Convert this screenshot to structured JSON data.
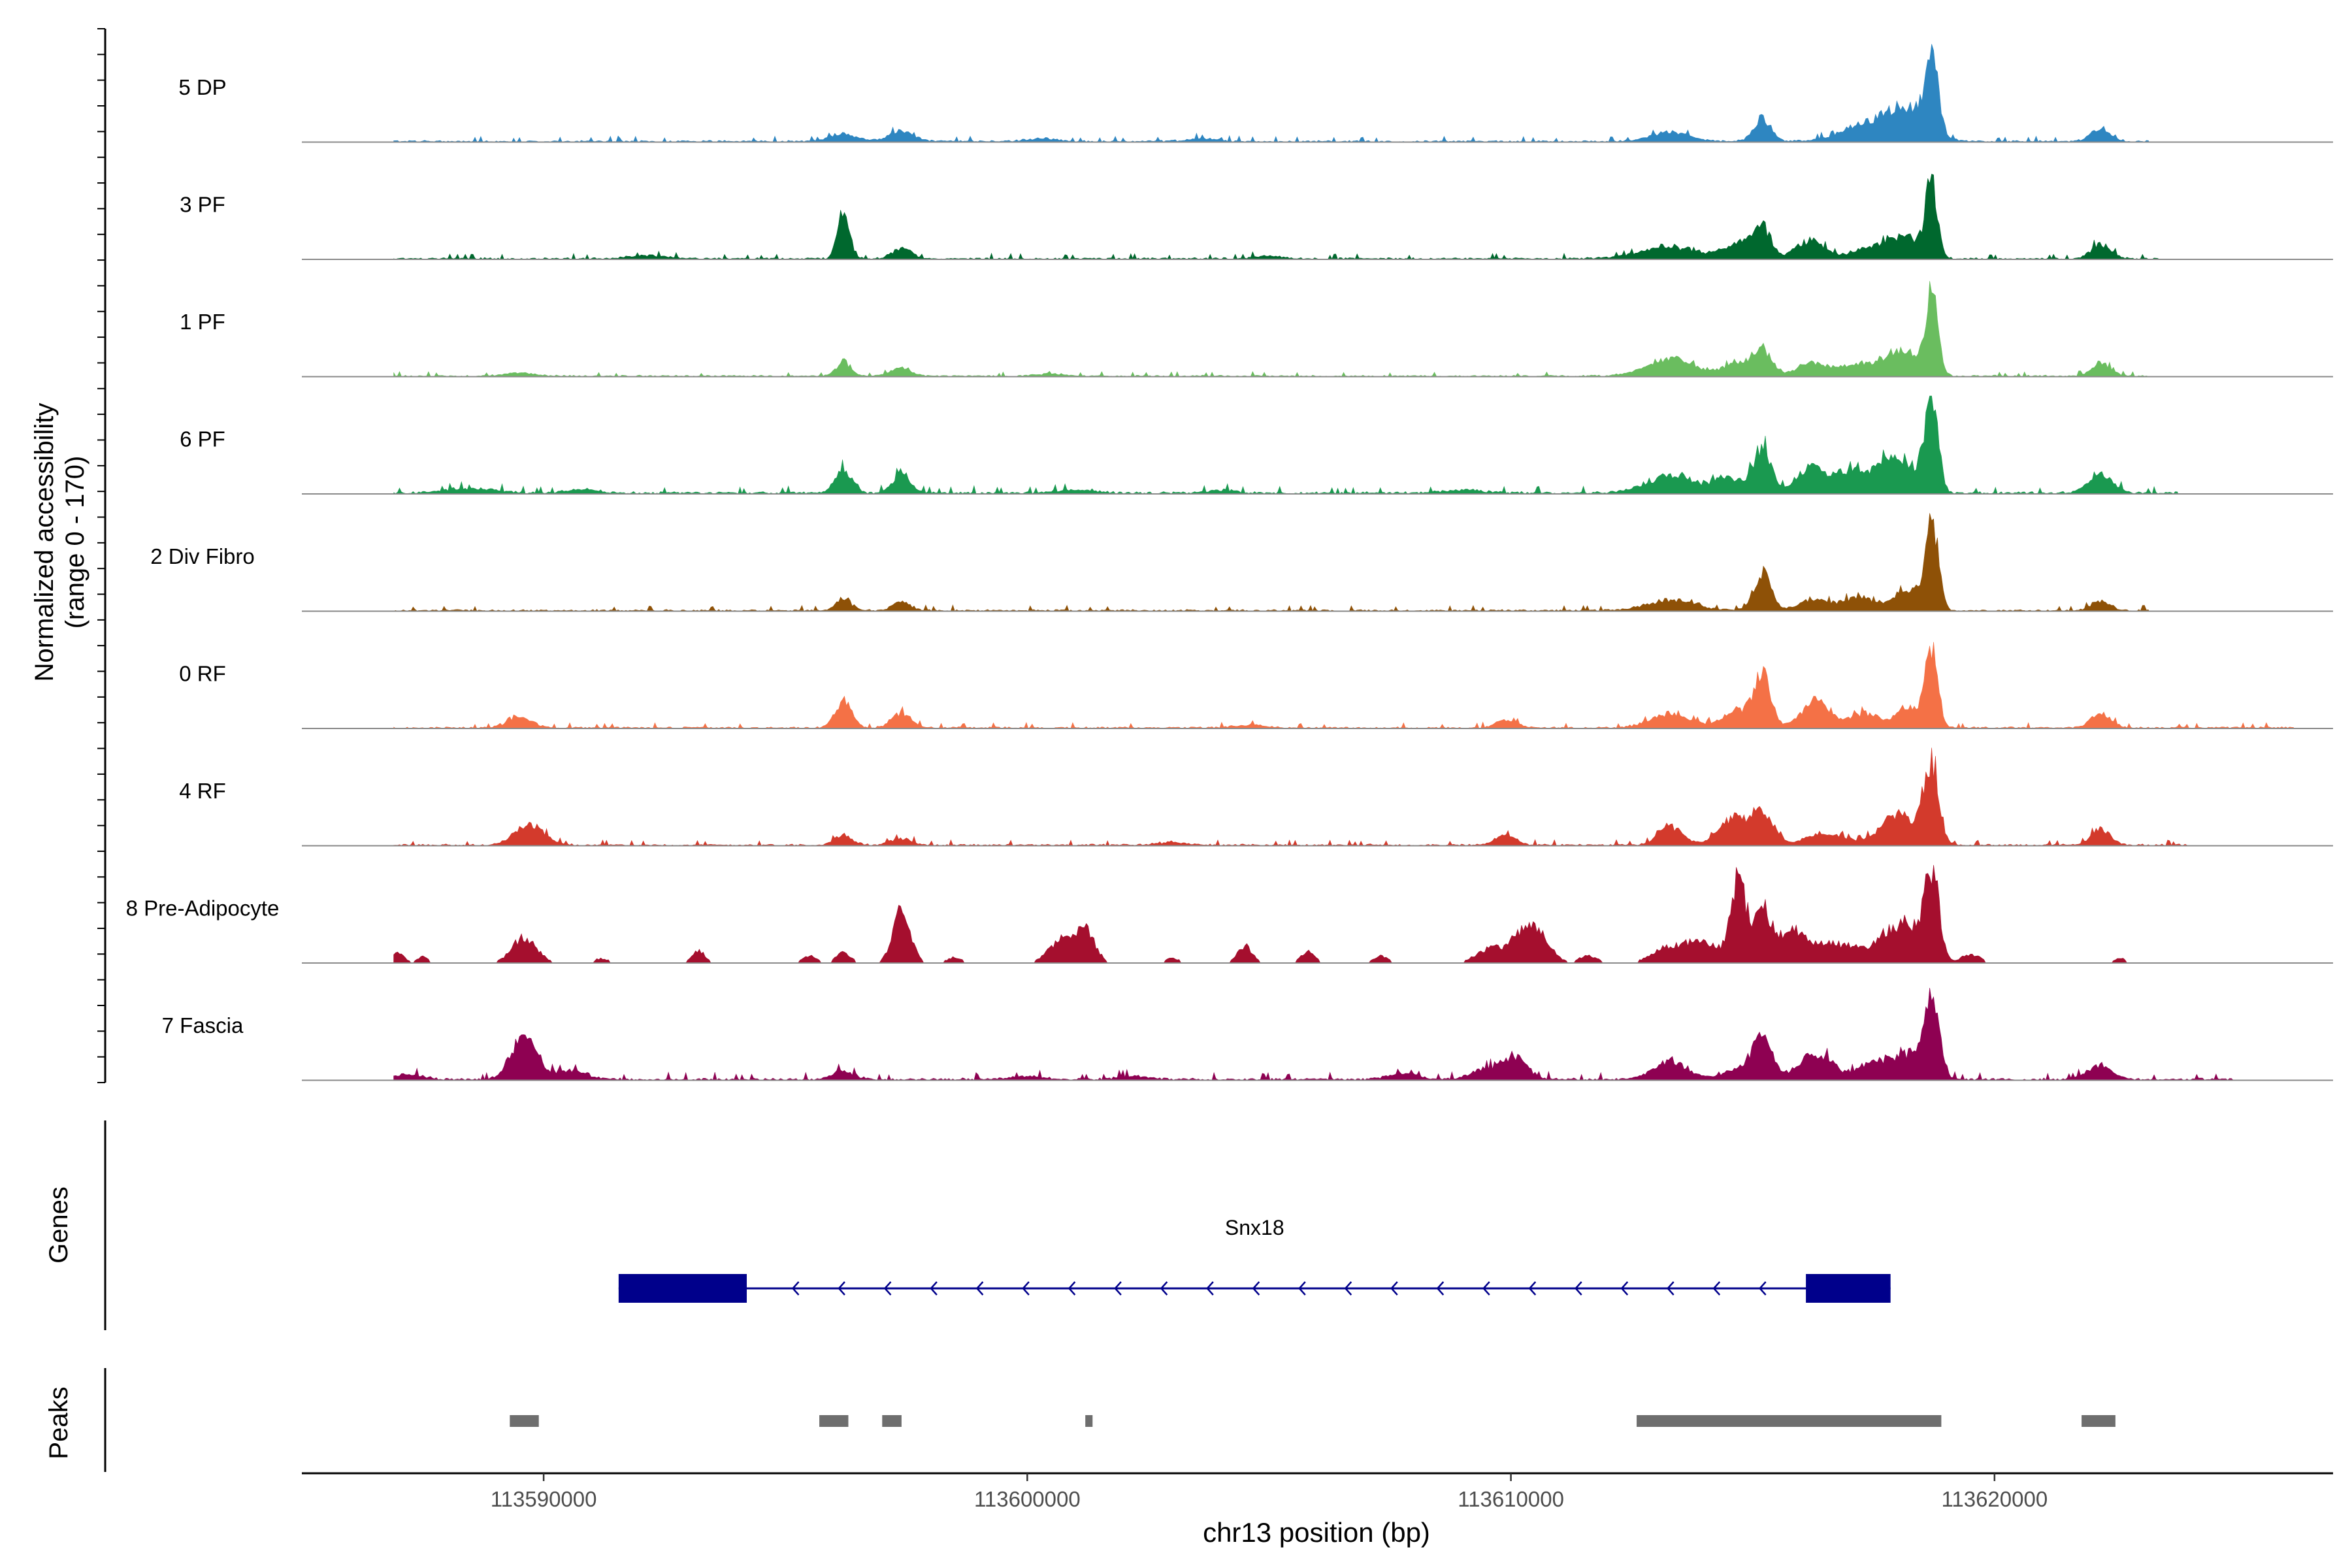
{
  "chart_data": {
    "type": "area",
    "title": "",
    "ylabel_line1": "Normalized accessibility",
    "ylabel_line2": "(range 0 - 170)",
    "xlabel": "chr13 position (bp)",
    "xlim": [
      113585000,
      113627000
    ],
    "ylim": [
      0,
      170
    ],
    "x_ticks": [
      113590000,
      113600000,
      113610000,
      113620000
    ],
    "x_tick_labels": [
      "113590000",
      "113600000",
      "113610000",
      "113620000"
    ],
    "track_labels": {
      "genes": "Genes",
      "peaks": "Peaks"
    },
    "tracks": [
      {
        "name": "5 DP",
        "color": "#2E86C1",
        "noise": 3.0,
        "range": [
          113586900,
          113623200
        ],
        "peaks": [
          [
            113596200,
            12,
            300
          ],
          [
            113597400,
            18,
            250
          ],
          [
            113600300,
            5,
            300
          ],
          [
            113603600,
            5,
            300
          ],
          [
            113613300,
            15,
            400
          ],
          [
            113615200,
            40,
            180
          ],
          [
            113617000,
            8,
            400
          ],
          [
            113617700,
            28,
            600
          ],
          [
            113618700,
            150,
            130
          ],
          [
            113618200,
            40,
            400
          ],
          [
            113622200,
            22,
            200
          ]
        ]
      },
      {
        "name": "3 PF",
        "color": "#00682E",
        "noise": 3.0,
        "range": [
          113586900,
          113623400
        ],
        "peaks": [
          [
            113592200,
            5,
            400
          ],
          [
            113596200,
            80,
            120
          ],
          [
            113597400,
            18,
            200
          ],
          [
            113605000,
            5,
            300
          ],
          [
            113613300,
            20,
            600
          ],
          [
            113614700,
            25,
            300
          ],
          [
            113615200,
            50,
            180
          ],
          [
            113616200,
            30,
            300
          ],
          [
            113617500,
            20,
            400
          ],
          [
            113618200,
            35,
            300
          ],
          [
            113618700,
            130,
            120
          ],
          [
            113622200,
            25,
            200
          ]
        ]
      },
      {
        "name": "1 PF",
        "color": "#6ABD5F",
        "noise": 2.5,
        "range": [
          113586900,
          113623200
        ],
        "peaks": [
          [
            113589500,
            6,
            300
          ],
          [
            113596200,
            25,
            150
          ],
          [
            113597400,
            15,
            200
          ],
          [
            113600500,
            4,
            300
          ],
          [
            113613300,
            30,
            500
          ],
          [
            113614700,
            20,
            300
          ],
          [
            113615200,
            40,
            200
          ],
          [
            113616200,
            22,
            300
          ],
          [
            113617000,
            18,
            300
          ],
          [
            113617700,
            25,
            300
          ],
          [
            113618200,
            40,
            250
          ],
          [
            113618700,
            140,
            130
          ],
          [
            113622200,
            22,
            200
          ]
        ]
      },
      {
        "name": "6 PF",
        "color": "#1A9950",
        "noise": 4.0,
        "range": [
          113586900,
          113623800
        ],
        "peaks": [
          [
            113588500,
            8,
            500
          ],
          [
            113590800,
            6,
            300
          ],
          [
            113596200,
            40,
            170
          ],
          [
            113597400,
            35,
            170
          ],
          [
            113601000,
            6,
            400
          ],
          [
            113604000,
            5,
            300
          ],
          [
            113609000,
            5,
            400
          ],
          [
            113613300,
            30,
            500
          ],
          [
            113614500,
            25,
            300
          ],
          [
            113615200,
            75,
            180
          ],
          [
            113616200,
            45,
            300
          ],
          [
            113617000,
            35,
            300
          ],
          [
            113617700,
            40,
            300
          ],
          [
            113618200,
            45,
            300
          ],
          [
            113618700,
            165,
            130
          ],
          [
            113622200,
            30,
            250
          ]
        ]
      },
      {
        "name": "2 Div Fibro",
        "color": "#8E5107",
        "noise": 3.0,
        "range": [
          113586900,
          113623200
        ],
        "peaks": [
          [
            113596200,
            22,
            150
          ],
          [
            113597400,
            16,
            180
          ],
          [
            113613300,
            18,
            500
          ],
          [
            113615200,
            65,
            180
          ],
          [
            113616300,
            20,
            300
          ],
          [
            113617200,
            22,
            300
          ],
          [
            113618200,
            35,
            300
          ],
          [
            113618700,
            160,
            130
          ],
          [
            113622200,
            16,
            200
          ]
        ]
      },
      {
        "name": "0 RF",
        "color": "#F47146",
        "noise": 3.0,
        "range": [
          113586900,
          113626200
        ],
        "peaks": [
          [
            113589500,
            18,
            250
          ],
          [
            113596200,
            45,
            170
          ],
          [
            113597400,
            25,
            200
          ],
          [
            113604600,
            5,
            300
          ],
          [
            113609900,
            15,
            200
          ],
          [
            113613300,
            25,
            400
          ],
          [
            113614700,
            30,
            300
          ],
          [
            113615200,
            90,
            170
          ],
          [
            113616300,
            45,
            300
          ],
          [
            113617300,
            25,
            300
          ],
          [
            113618200,
            35,
            250
          ],
          [
            113618700,
            140,
            130
          ],
          [
            113622200,
            25,
            200
          ]
        ]
      },
      {
        "name": "4 RF",
        "color": "#D33A2C",
        "noise": 3.0,
        "range": [
          113586900,
          113624000
        ],
        "peaks": [
          [
            113589700,
            35,
            300
          ],
          [
            113596200,
            18,
            170
          ],
          [
            113597400,
            12,
            200
          ],
          [
            113603000,
            5,
            300
          ],
          [
            113609900,
            18,
            200
          ],
          [
            113613300,
            30,
            250
          ],
          [
            113614600,
            45,
            300
          ],
          [
            113615200,
            55,
            220
          ],
          [
            113616500,
            20,
            400
          ],
          [
            113617800,
            30,
            300
          ],
          [
            113618200,
            35,
            300
          ],
          [
            113618700,
            140,
            150
          ],
          [
            113622200,
            28,
            200
          ]
        ]
      },
      {
        "name": "8 Pre-Adipocyte",
        "color": "#A50F2E",
        "noise": 0.0,
        "range": [
          113586900,
          113624000
        ],
        "peaks": [
          [
            113587000,
            18,
            120
          ],
          [
            113587500,
            12,
            100
          ],
          [
            113589600,
            45,
            250
          ],
          [
            113591200,
            8,
            150
          ],
          [
            113593200,
            22,
            130
          ],
          [
            113595500,
            12,
            150
          ],
          [
            113596200,
            18,
            150
          ],
          [
            113597400,
            90,
            180
          ],
          [
            113598500,
            10,
            150
          ],
          [
            113600700,
            40,
            250
          ],
          [
            113601200,
            55,
            200
          ],
          [
            113603000,
            8,
            150
          ],
          [
            113604500,
            30,
            150
          ],
          [
            113605800,
            20,
            150
          ],
          [
            113607300,
            12,
            150
          ],
          [
            113609600,
            25,
            300
          ],
          [
            113610300,
            58,
            250
          ],
          [
            113610700,
            30,
            200
          ],
          [
            113611600,
            12,
            200
          ],
          [
            113613300,
            28,
            350
          ],
          [
            113614000,
            35,
            300
          ],
          [
            113614700,
            140,
            160
          ],
          [
            113615200,
            95,
            180
          ],
          [
            113615800,
            55,
            250
          ],
          [
            113616400,
            30,
            300
          ],
          [
            113617000,
            25,
            300
          ],
          [
            113617700,
            40,
            250
          ],
          [
            113618200,
            65,
            250
          ],
          [
            113618700,
            160,
            150
          ],
          [
            113619500,
            15,
            200
          ],
          [
            113622600,
            8,
            120
          ]
        ]
      },
      {
        "name": "7 Fascia",
        "color": "#8E0152",
        "noise": 4.0,
        "range": [
          113586900,
          113625000
        ],
        "peaks": [
          [
            113587200,
            8,
            300
          ],
          [
            113589600,
            80,
            260
          ],
          [
            113590600,
            15,
            300
          ],
          [
            113596200,
            15,
            200
          ],
          [
            113600000,
            6,
            300
          ],
          [
            113602200,
            6,
            300
          ],
          [
            113607800,
            10,
            300
          ],
          [
            113609500,
            18,
            300
          ],
          [
            113610100,
            35,
            250
          ],
          [
            113613300,
            30,
            350
          ],
          [
            113614700,
            20,
            300
          ],
          [
            113615200,
            85,
            180
          ],
          [
            113616300,
            45,
            350
          ],
          [
            113617500,
            30,
            300
          ],
          [
            113618200,
            40,
            300
          ],
          [
            113618700,
            130,
            160
          ],
          [
            113622200,
            25,
            250
          ]
        ]
      }
    ],
    "gene": {
      "name": "Snx18",
      "color": "#00008B",
      "start": 113591550,
      "end": 113617850,
      "strand": "-",
      "exons": [
        [
          113591550,
          113594200
        ],
        [
          113616100,
          113617850
        ]
      ]
    },
    "peaks_track": {
      "color": "#6E6E6E",
      "regions": [
        [
          113589300,
          113589900
        ],
        [
          113595700,
          113596300
        ],
        [
          113597000,
          113597400
        ],
        [
          113601200,
          113601350
        ],
        [
          113612600,
          113618900
        ],
        [
          113621800,
          113622500
        ]
      ]
    }
  }
}
